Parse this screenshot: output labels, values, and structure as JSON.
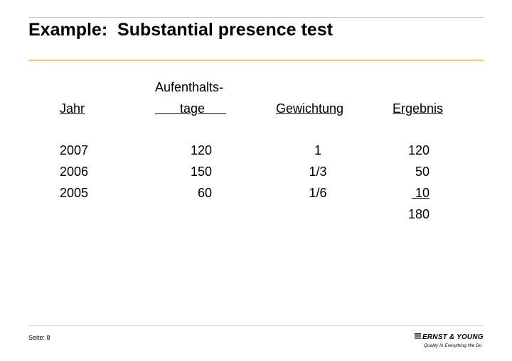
{
  "slide": {
    "title": "Example:  Substantial presence test",
    "headers": {
      "year": "Jahr",
      "days_line1": "Aufenthalts-",
      "days_line2": "       tage      ",
      "weight": "Gewichtung",
      "result": "Ergebnis"
    },
    "rows": [
      {
        "year": "2007",
        "days": "120",
        "weight": "1",
        "result": "120"
      },
      {
        "year": "2006",
        "days": "150",
        "weight": "1/3",
        "result": "50"
      },
      {
        "year": "2005",
        "days": "60",
        "weight": "1/6",
        "result": " 10"
      }
    ],
    "total": "180"
  },
  "footer": {
    "page_label": "Seite: 8",
    "brand": "ERNST & YOUNG",
    "tagline": "Quality In Everything We Do"
  }
}
